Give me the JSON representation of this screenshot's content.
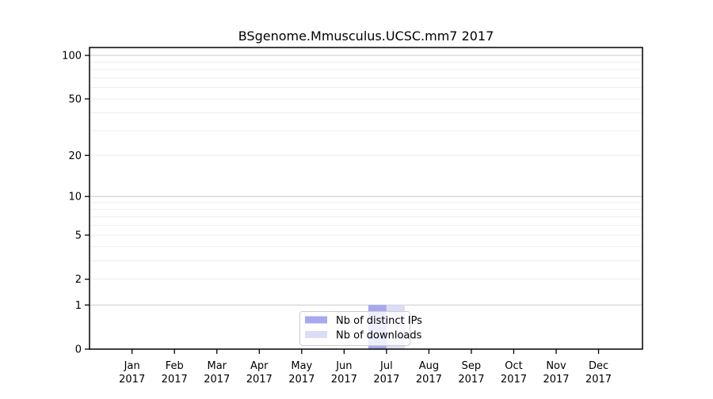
{
  "chart_data": {
    "type": "bar",
    "title": "BSgenome.Mmusculus.UCSC.mm7 2017",
    "x_year": "2017",
    "categories": [
      "Jan",
      "Feb",
      "Mar",
      "Apr",
      "May",
      "Jun",
      "Jul",
      "Aug",
      "Sep",
      "Oct",
      "Nov",
      "Dec"
    ],
    "series": [
      {
        "name": "Nb of distinct IPs",
        "color": "#a8a8ee",
        "values": [
          0,
          0,
          0,
          0,
          0,
          0,
          1,
          0,
          0,
          0,
          0,
          0
        ]
      },
      {
        "name": "Nb of downloads",
        "color": "#dcdcf6",
        "values": [
          0,
          0,
          0,
          0,
          0,
          0,
          1,
          0,
          0,
          0,
          0,
          0
        ]
      }
    ],
    "y_scale": "log1p",
    "y_ticks": [
      0,
      1,
      2,
      5,
      10,
      20,
      50,
      100
    ],
    "y_minor_gridlines": [
      2,
      3,
      4,
      5,
      6,
      7,
      8,
      9,
      20,
      30,
      40,
      50,
      60,
      70,
      80,
      90
    ],
    "y_major_gridlines": [
      1,
      10,
      100
    ],
    "ylim": [
      0,
      113
    ],
    "grid": true,
    "legend_position": "lower center",
    "xlabel": "",
    "ylabel": ""
  },
  "colors": {
    "plot_background": "#ffffff",
    "axis": "#000000",
    "minor_grid": "#eeeeee",
    "major_grid": "#c9c9c9",
    "legend_border": "#cccccc",
    "legend_background": "rgba(255,255,255,0.8)"
  }
}
